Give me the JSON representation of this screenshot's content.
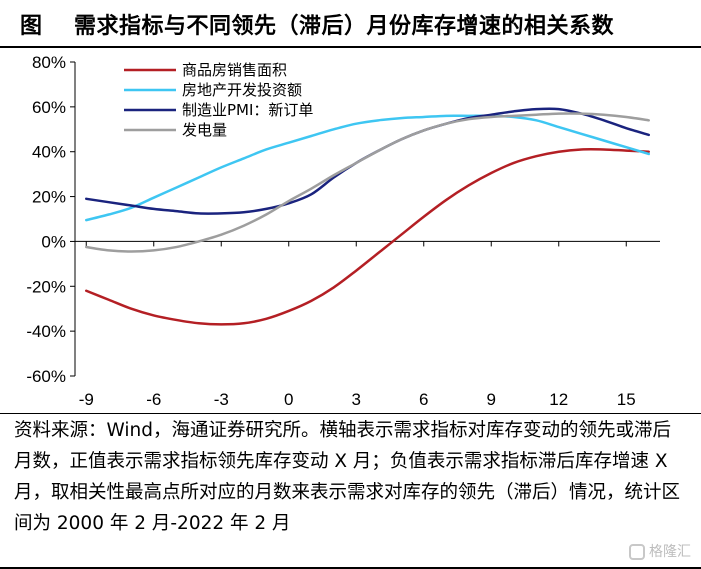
{
  "figure": {
    "label": "图",
    "title": "需求指标与不同领先（滞后）月份库存增速的相关系数"
  },
  "chart_data": {
    "type": "line",
    "title": "",
    "xlabel": "",
    "ylabel": "",
    "xlim": [
      -9.5,
      16.5
    ],
    "ylim": [
      -60,
      80
    ],
    "x_ticks": [
      -9,
      -6,
      -3,
      0,
      3,
      6,
      9,
      12,
      15
    ],
    "x_tick_labels": [
      "-9",
      "-6",
      "-3",
      "0",
      "3",
      "6",
      "9",
      "12",
      "15"
    ],
    "y_ticks": [
      80,
      60,
      40,
      20,
      0,
      -20,
      -40,
      -60
    ],
    "y_tick_labels": [
      "80%",
      "60%",
      "40%",
      "20%",
      "0%",
      "-20%",
      "-40%",
      "-60%"
    ],
    "grid": false,
    "legend_position": "top-left",
    "x": [
      -9,
      -8,
      -7,
      -6,
      -5,
      -4,
      -3,
      -2,
      -1,
      0,
      1,
      2,
      3,
      4,
      5,
      6,
      7,
      8,
      9,
      10,
      11,
      12,
      13,
      14,
      15,
      16
    ],
    "series": [
      {
        "name": "商品房销售面积",
        "color": "#b41f24",
        "values": [
          -22,
          -26,
          -30,
          -33,
          -35,
          -36.5,
          -37,
          -36.5,
          -34.5,
          -31,
          -26.5,
          -20.5,
          -13,
          -5,
          3,
          11,
          18.5,
          25,
          30.5,
          35,
          38,
          40,
          41,
          41,
          40.5,
          40
        ]
      },
      {
        "name": "房地产开发投资额",
        "color": "#3ec6f2",
        "values": [
          9.5,
          12,
          15,
          19.5,
          24,
          28.5,
          33,
          37,
          41,
          44,
          47,
          50,
          52.5,
          54,
          55,
          55.5,
          56,
          56,
          56,
          55.5,
          54,
          51,
          48,
          45,
          42,
          39
        ]
      },
      {
        "name": "制造业PMI：新订单",
        "color": "#1a237e",
        "values": [
          19,
          17.5,
          16,
          14.5,
          13.5,
          12.5,
          12.5,
          13,
          14.5,
          17,
          21,
          28.5,
          35,
          40.5,
          45.5,
          49.5,
          52.5,
          55,
          56.5,
          58,
          59,
          59,
          57,
          54,
          50.5,
          47.5
        ]
      },
      {
        "name": "发电量",
        "color": "#9e9e9e",
        "values": [
          -2.5,
          -4,
          -4.5,
          -4,
          -2.5,
          0,
          3,
          7,
          12,
          18,
          23.5,
          29.5,
          35,
          40.5,
          45.5,
          49.5,
          52.5,
          54.5,
          55.5,
          56,
          56.5,
          57,
          57,
          56.5,
          55.5,
          54
        ]
      }
    ]
  },
  "source_note": "资料来源：Wind，海通证券研究所。横轴表示需求指标对库存变动的领先或滞后月数，正值表示需求指标领先库存变动 X 月；负值表示需求指标滞后库存增速 X 月，取相关性最高点所对应的月数来表示需求对库存的领先（滞后）情况，统计区间为 2000 年 2 月-2022 年 2 月",
  "watermark": "格隆汇"
}
